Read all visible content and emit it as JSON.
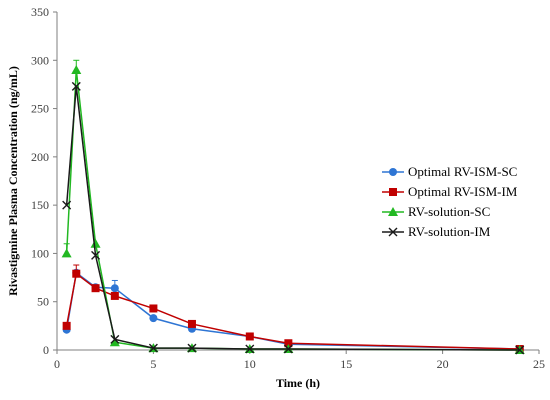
{
  "chart_data": {
    "type": "line",
    "title": "",
    "xlabel": "Time (h)",
    "ylabel": "Rivastigmine Plasma Concentration (ng/mL)",
    "xlim": [
      0,
      25
    ],
    "ylim": [
      0,
      350
    ],
    "xticks": [
      0,
      5,
      10,
      15,
      20,
      25
    ],
    "yticks": [
      0,
      50,
      100,
      150,
      200,
      250,
      300,
      350
    ],
    "grid": false,
    "legend_position": "right",
    "series": [
      {
        "name": "Optimal RV-ISM-SC",
        "color": "#2e75d4",
        "marker": "circle",
        "x": [
          0.5,
          1,
          2,
          3,
          5,
          7,
          10,
          12,
          24
        ],
        "y": [
          21,
          80,
          65,
          64,
          33,
          22,
          14,
          6,
          1
        ],
        "yerr": [
          0,
          0,
          0,
          8,
          0,
          0,
          0,
          0,
          0
        ]
      },
      {
        "name": "Optimal RV-ISM-IM",
        "color": "#c00000",
        "marker": "square",
        "x": [
          0.5,
          1,
          2,
          3,
          5,
          7,
          10,
          12,
          24
        ],
        "y": [
          25,
          79,
          64,
          56,
          43,
          27,
          14,
          7,
          1
        ],
        "yerr": [
          0,
          9,
          0,
          0,
          0,
          0,
          0,
          0,
          0
        ]
      },
      {
        "name": "RV-solution-SC",
        "color": "#22b822",
        "marker": "triangle",
        "x": [
          0.5,
          1,
          2,
          3,
          5,
          7,
          10,
          12,
          24
        ],
        "y": [
          100,
          290,
          110,
          8,
          2,
          2,
          1,
          1,
          0
        ],
        "yerr": [
          10,
          10,
          0,
          0,
          0,
          0,
          0,
          0,
          0
        ]
      },
      {
        "name": "RV-solution-IM",
        "color": "#1a1a1a",
        "marker": "cross",
        "x": [
          0.5,
          1,
          2,
          3,
          5,
          7,
          10,
          12,
          24
        ],
        "y": [
          150,
          273,
          98,
          11,
          2,
          2,
          1,
          1,
          0
        ],
        "yerr": [
          0,
          0,
          0,
          0,
          0,
          0,
          0,
          0,
          0
        ]
      }
    ]
  }
}
